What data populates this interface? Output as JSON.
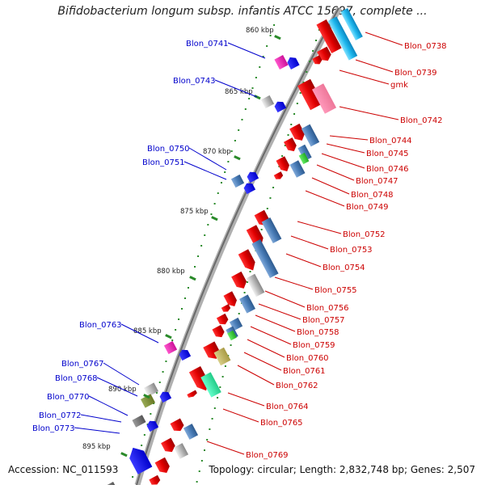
{
  "title": "Bifidobacterium longum subsp. infantis ATCC 15697, complete ...",
  "accession": "Accession: NC_011593",
  "summary": "Topology: circular; Length: 2,832,748 bp; Genes: 2,507",
  "colors": {
    "backbone": "#888888",
    "forward_gene": "#ff0000",
    "reverse_gene": "#0000ff",
    "forward_label": "#cc0000",
    "reverse_label": "#0000cc",
    "tick": "#1a7a1a",
    "cds_blue": "#5b8fc8",
    "cds_cyan": "#34c6f0"
  },
  "ticks": [
    {
      "label": "860 kbp"
    },
    {
      "label": "865 kbp"
    },
    {
      "label": "870 kbp"
    },
    {
      "label": "875 kbp"
    },
    {
      "label": "880 kbp"
    },
    {
      "label": "885 kbp"
    },
    {
      "label": "890 kbp"
    },
    {
      "label": "895 kbp"
    }
  ],
  "right_labels": [
    "Blon_0738",
    "Blon_0739",
    "gmk",
    "Blon_0742",
    "Blon_0744",
    "Blon_0745",
    "Blon_0746",
    "Blon_0747",
    "Blon_0748",
    "Blon_0749",
    "Blon_0752",
    "Blon_0753",
    "Blon_0754",
    "Blon_0755",
    "Blon_0756",
    "Blon_0757",
    "Blon_0758",
    "Blon_0759",
    "Blon_0760",
    "Blon_0761",
    "Blon_0762",
    "Blon_0764",
    "Blon_0765",
    "Blon_0769"
  ],
  "left_labels": [
    "Blon_0741",
    "Blon_0743",
    "Blon_0750",
    "Blon_0751",
    "Blon_0763",
    "Blon_0767",
    "Blon_0768",
    "Blon_0770",
    "Blon_0772",
    "Blon_0773"
  ]
}
